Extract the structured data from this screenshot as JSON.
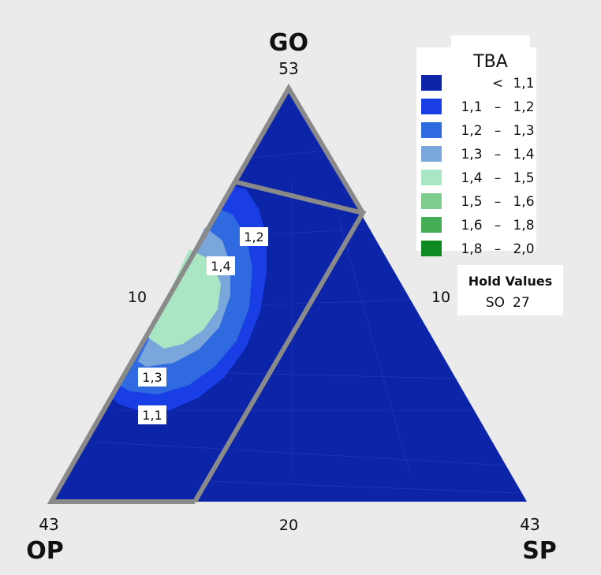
{
  "chart_data": {
    "type": "ternary-contour",
    "title": "",
    "components": [
      {
        "name": "GO",
        "max": "53"
      },
      {
        "name": "OP",
        "max": "43"
      },
      {
        "name": "SP",
        "max": "43"
      }
    ],
    "axis_ticks": {
      "left": "10",
      "right": "10",
      "bottom": "20"
    },
    "legend": {
      "title": "TBA",
      "placement": "top-right",
      "entries": [
        {
          "low": "",
          "sep": "<",
          "high": "1,1",
          "color": "#0b24a8"
        },
        {
          "low": "1,1",
          "sep": "–",
          "high": "1,2",
          "color": "#1a3ee6"
        },
        {
          "low": "1,2",
          "sep": "–",
          "high": "1,3",
          "color": "#2f6ae0"
        },
        {
          "low": "1,3",
          "sep": "–",
          "high": "1,4",
          "color": "#7aa6dc"
        },
        {
          "low": "1,4",
          "sep": "–",
          "high": "1,5",
          "color": "#a9e6c3"
        },
        {
          "low": "1,5",
          "sep": "–",
          "high": "1,6",
          "color": "#7fcc8e"
        },
        {
          "low": "1,6",
          "sep": "–",
          "high": "1,8",
          "color": "#45ad55"
        },
        {
          "low": "1,8",
          "sep": "–",
          "high": "2,0",
          "color": "#0f8a22"
        }
      ]
    },
    "contour_labels": [
      "1,2",
      "1,4",
      "1,3",
      "1,1"
    ],
    "hold_values": {
      "title": "Hold Values",
      "entries": [
        {
          "name": "SO",
          "value": "27"
        }
      ]
    }
  }
}
